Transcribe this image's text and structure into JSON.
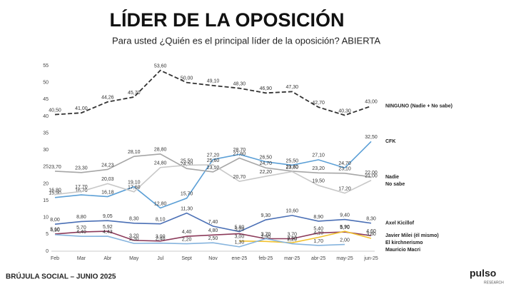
{
  "chart_data": {
    "type": "line",
    "title": "LÍDER DE LA OPOSICIÓN",
    "subtitle": "Para usted ¿Quién es el principal líder de la oposición? ABIERTA",
    "categories": [
      "Feb",
      "Mar",
      "Abr",
      "May",
      "Jul",
      "Sept",
      "Nov",
      "ene-25",
      "feb-25",
      "mar-25",
      "abr-25",
      "may-25",
      "jun-25"
    ],
    "ylim": [
      0,
      55
    ],
    "yticks": [
      0,
      5,
      10,
      15,
      20,
      25,
      30,
      35,
      40,
      45,
      50,
      55
    ],
    "series": [
      {
        "name": "NINGUNO (Nadie + No sabe)",
        "color": "#333333",
        "dashed": true,
        "values": [
          40.5,
          41.0,
          44.26,
          45.7,
          53.6,
          50.0,
          49.1,
          48.3,
          46.9,
          47.3,
          42.7,
          40.3,
          43.0
        ],
        "value_labels": [
          "40,50",
          "41,00",
          "44,26",
          "45,70",
          "53,60",
          "50,00",
          "49,10",
          "48,30",
          "46,90",
          "47,30",
          "42,70",
          "40,30",
          "43,00"
        ]
      },
      {
        "name": "CFK",
        "color": "#5b9fd6",
        "values": [
          15.9,
          16.7,
          16.18,
          19.1,
          12.8,
          15.7,
          27.2,
          28.7,
          26.5,
          25.5,
          27.1,
          24.7,
          32.5
        ],
        "value_labels": [
          "15,90",
          "16,70",
          "16,18",
          "19,10",
          "12,80",
          "15,70",
          "27,20",
          "28,70",
          "26,50",
          "25,50",
          "27,10",
          "24,70",
          "32,50"
        ]
      },
      {
        "name": "Nadie",
        "color": "#a6a6a6",
        "values": [
          23.7,
          23.3,
          24.23,
          28.1,
          28.8,
          24.5,
          23.5,
          27.6,
          24.7,
          23.7,
          23.2,
          23.1,
          22.0
        ],
        "value_labels": [
          "23,70",
          "23,30",
          "24,23",
          "28,10",
          "28,80",
          "24,50",
          "23,50",
          "27,60",
          "24,70",
          "23,70",
          "23,20",
          "23,10",
          "22,00"
        ]
      },
      {
        "name": "No sabe",
        "color": "#c8c8c8",
        "values": [
          16.8,
          17.7,
          20.03,
          17.6,
          24.8,
          25.5,
          25.6,
          20.7,
          22.2,
          23.6,
          19.5,
          17.2,
          21.0
        ],
        "value_labels": [
          "16,80",
          "17,70",
          "20,03",
          "17,60",
          "24,80",
          "25,50",
          "25,60",
          "20,70",
          "22,20",
          "23,60",
          "19,50",
          "17,20",
          "21,00"
        ]
      },
      {
        "name": "Axel Kicillof",
        "color": "#4a6fb5",
        "values": [
          8.0,
          8.8,
          9.05,
          8.3,
          8.1,
          11.3,
          7.4,
          5.8,
          9.3,
          10.6,
          8.9,
          9.4,
          8.3
        ],
        "value_labels": [
          "8,00",
          "8,80",
          "9,05",
          "8,30",
          "8,10",
          "11,30",
          "7,40",
          "5,80",
          "9,30",
          "10,60",
          "8,90",
          "9,40",
          "8,30"
        ]
      },
      {
        "name": "Javier Milei (él mismo)",
        "color": "#8b3a5a",
        "values": [
          5.1,
          5.7,
          5.92,
          3.2,
          3.0,
          4.4,
          4.8,
          5.2,
          3.7,
          3.7,
          5.4,
          5.7,
          4.6
        ],
        "value_labels": [
          "5,10",
          "5,70",
          "5,92",
          "3,20",
          "3,00",
          "4,40",
          "4,80",
          "5,20",
          "3,70",
          "3,70",
          "5,40",
          "5,70",
          "4,60"
        ]
      },
      {
        "name": "El kirchnerismo",
        "color": "#f2c12e",
        "values": [
          null,
          null,
          null,
          null,
          null,
          null,
          null,
          3.0,
          2.9,
          2.5,
          4.1,
          5.9,
          3.8
        ],
        "value_labels": [
          null,
          null,
          null,
          null,
          null,
          null,
          null,
          "3,00",
          "2,90",
          "2,50",
          "4,10",
          "5,90",
          "3,80"
        ]
      },
      {
        "name": "Mauricio Macri",
        "color": "#86b4de",
        "values": [
          4.9,
          4.4,
          4.43,
          2.3,
          2.4,
          2.2,
          2.5,
          1.3,
          3.7,
          2.2,
          1.7,
          2.0,
          null
        ],
        "value_labels": [
          "4,90",
          "4,40",
          "4,43",
          "2,30",
          "2,40",
          "2,20",
          "2,50",
          "1,30",
          "3,70",
          "2,20",
          "1,70",
          "2,00",
          null
        ]
      }
    ],
    "footer": "BRÚJULA SOCIAL – JUNIO 2025",
    "logo": {
      "name": "pulso",
      "tagline": "RESEARCH"
    }
  }
}
